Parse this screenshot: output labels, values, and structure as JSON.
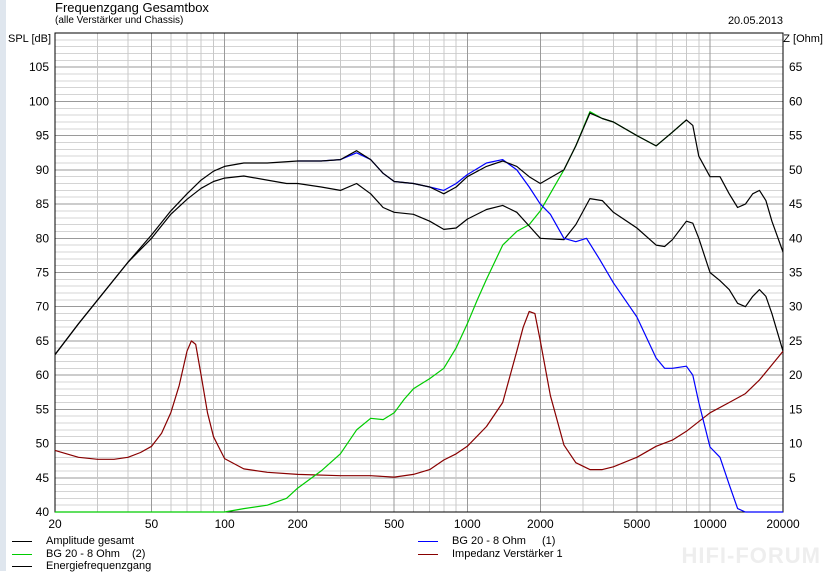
{
  "header": {
    "title": "Frequenzgang Gesamtbox",
    "subtitle": "(alle Verstärker und Chassis)",
    "date": "20.05.2013"
  },
  "axes": {
    "left_label": "SPL [dB]",
    "right_label": "Z [Ohm]"
  },
  "legend": [
    {
      "label": "Amplitude gesamt",
      "num": "",
      "color": "#000000"
    },
    {
      "label": "BG 20 - 8 Ohm",
      "num": "(1)",
      "color": "#0000ff"
    },
    {
      "label": "BG 20 - 8 Ohm",
      "num": "(2)",
      "color": "#00cc00"
    },
    {
      "label": "Impedanz Verstärker 1",
      "num": "",
      "color": "#880000"
    },
    {
      "label": "Energiefrequenzgang",
      "num": "",
      "color": "#000000"
    }
  ],
  "watermark": "HIFI-FORUM",
  "chart_data": {
    "type": "line",
    "title": "Frequenzgang Gesamtbox",
    "subtitle": "(alle Verstärker und Chassis)",
    "xlabel": "",
    "ylabel": "SPL [dB]",
    "y2label": "Z [Ohm]",
    "x_scale": "log",
    "xlim": [
      20,
      20000
    ],
    "ylim": [
      40,
      110
    ],
    "y2lim": [
      0,
      70
    ],
    "grid": true,
    "x_ticks": [
      20,
      50,
      100,
      200,
      500,
      1000,
      2000,
      5000,
      10000,
      20000
    ],
    "x_tick_labels": [
      "20",
      "50",
      "100",
      "200",
      "500",
      "1000",
      "2000",
      "5000",
      "10000",
      "20000"
    ],
    "y_ticks": [
      40,
      45,
      50,
      55,
      60,
      65,
      70,
      75,
      80,
      85,
      90,
      95,
      100,
      105
    ],
    "y_tick_labels": [
      "40",
      "45",
      "50",
      "55",
      "60",
      "65",
      "70",
      "75",
      "80",
      "85",
      "90",
      "95",
      "100",
      "105"
    ],
    "y2_ticks": [
      5,
      10,
      15,
      20,
      25,
      30,
      35,
      40,
      45,
      50,
      55,
      60,
      65
    ],
    "y2_tick_labels": [
      "5",
      "10",
      "15",
      "20",
      "25",
      "30",
      "35",
      "40",
      "45",
      "50",
      "55",
      "60",
      "65"
    ],
    "series": [
      {
        "name": "Amplitude gesamt",
        "color": "#000000",
        "axis": "left",
        "points": [
          [
            20,
            63
          ],
          [
            25,
            67.5
          ],
          [
            30,
            71
          ],
          [
            40,
            76.5
          ],
          [
            50,
            80.5
          ],
          [
            60,
            84
          ],
          [
            70,
            86.5
          ],
          [
            80,
            88.5
          ],
          [
            90,
            89.8
          ],
          [
            100,
            90.5
          ],
          [
            120,
            91
          ],
          [
            150,
            91
          ],
          [
            200,
            91.3
          ],
          [
            250,
            91.3
          ],
          [
            300,
            91.5
          ],
          [
            350,
            92.8
          ],
          [
            400,
            91.5
          ],
          [
            450,
            89.5
          ],
          [
            500,
            88.3
          ],
          [
            600,
            88
          ],
          [
            700,
            87.5
          ],
          [
            800,
            86.5
          ],
          [
            900,
            87.5
          ],
          [
            1000,
            89
          ],
          [
            1200,
            90.5
          ],
          [
            1400,
            91.3
          ],
          [
            1600,
            90.5
          ],
          [
            1800,
            89
          ],
          [
            2000,
            88
          ],
          [
            2500,
            90
          ],
          [
            2800,
            93.5
          ],
          [
            3200,
            98.3
          ],
          [
            3600,
            97.5
          ],
          [
            4000,
            97
          ],
          [
            5000,
            95
          ],
          [
            6000,
            93.5
          ],
          [
            7000,
            95.5
          ],
          [
            8000,
            97.3
          ],
          [
            8500,
            96.5
          ],
          [
            9000,
            92
          ],
          [
            10000,
            89
          ],
          [
            11000,
            89
          ],
          [
            12000,
            86.5
          ],
          [
            13000,
            84.5
          ],
          [
            14000,
            85
          ],
          [
            15000,
            86.5
          ],
          [
            16000,
            87
          ],
          [
            17000,
            85.5
          ],
          [
            18000,
            82.5
          ],
          [
            20000,
            78
          ]
        ]
      },
      {
        "name": "BG 20 - 8 Ohm (1)",
        "color": "#0000ff",
        "axis": "left",
        "points": [
          [
            200,
            91.3
          ],
          [
            250,
            91.3
          ],
          [
            300,
            91.5
          ],
          [
            350,
            92.5
          ],
          [
            400,
            91.5
          ],
          [
            450,
            89.5
          ],
          [
            500,
            88.3
          ],
          [
            600,
            88
          ],
          [
            700,
            87.5
          ],
          [
            800,
            87
          ],
          [
            900,
            88
          ],
          [
            1000,
            89.3
          ],
          [
            1200,
            91
          ],
          [
            1400,
            91.5
          ],
          [
            1600,
            90
          ],
          [
            1800,
            87.5
          ],
          [
            2000,
            85
          ],
          [
            2200,
            83.5
          ],
          [
            2500,
            80
          ],
          [
            2800,
            79.5
          ],
          [
            3100,
            80
          ],
          [
            3500,
            77
          ],
          [
            4000,
            73.5
          ],
          [
            5000,
            68.5
          ],
          [
            6000,
            62.5
          ],
          [
            6500,
            61
          ],
          [
            7000,
            61
          ],
          [
            8000,
            61.3
          ],
          [
            8500,
            60
          ],
          [
            9000,
            56
          ],
          [
            10000,
            49.5
          ],
          [
            11000,
            48
          ],
          [
            12000,
            44
          ],
          [
            13000,
            40.5
          ],
          [
            14000,
            40
          ],
          [
            20000,
            40
          ]
        ]
      },
      {
        "name": "BG 20 - 8 Ohm (2)",
        "color": "#00cc00",
        "axis": "left",
        "points": [
          [
            20,
            40
          ],
          [
            100,
            40
          ],
          [
            120,
            40.5
          ],
          [
            150,
            41
          ],
          [
            180,
            42
          ],
          [
            200,
            43.5
          ],
          [
            250,
            46
          ],
          [
            300,
            48.5
          ],
          [
            350,
            52
          ],
          [
            400,
            53.7
          ],
          [
            450,
            53.5
          ],
          [
            500,
            54.5
          ],
          [
            550,
            56.5
          ],
          [
            600,
            58
          ],
          [
            700,
            59.5
          ],
          [
            800,
            61
          ],
          [
            900,
            64
          ],
          [
            1000,
            67.5
          ],
          [
            1100,
            71
          ],
          [
            1200,
            74
          ],
          [
            1400,
            79
          ],
          [
            1600,
            81
          ],
          [
            1800,
            82
          ],
          [
            2000,
            84
          ],
          [
            2500,
            90
          ],
          [
            2800,
            93.5
          ],
          [
            3200,
            98.5
          ],
          [
            3600,
            97.5
          ],
          [
            4000,
            97
          ],
          [
            5000,
            95
          ],
          [
            6000,
            93.5
          ],
          [
            7000,
            95.5
          ],
          [
            8000,
            97.3
          ]
        ]
      },
      {
        "name": "Impedanz Verstärker 1",
        "color": "#880000",
        "axis": "right",
        "points": [
          [
            20,
            9
          ],
          [
            25,
            8
          ],
          [
            30,
            7.7
          ],
          [
            35,
            7.7
          ],
          [
            40,
            8
          ],
          [
            45,
            8.7
          ],
          [
            50,
            9.6
          ],
          [
            55,
            11.5
          ],
          [
            60,
            14.5
          ],
          [
            65,
            18.5
          ],
          [
            70,
            23.5
          ],
          [
            73,
            25
          ],
          [
            76,
            24.5
          ],
          [
            80,
            20
          ],
          [
            85,
            14.5
          ],
          [
            90,
            11
          ],
          [
            100,
            7.8
          ],
          [
            120,
            6.3
          ],
          [
            150,
            5.8
          ],
          [
            200,
            5.5
          ],
          [
            300,
            5.3
          ],
          [
            400,
            5.3
          ],
          [
            500,
            5.1
          ],
          [
            600,
            5.5
          ],
          [
            700,
            6.2
          ],
          [
            800,
            7.6
          ],
          [
            900,
            8.5
          ],
          [
            1000,
            9.6
          ],
          [
            1200,
            12.5
          ],
          [
            1400,
            16
          ],
          [
            1600,
            23.5
          ],
          [
            1700,
            27
          ],
          [
            1800,
            29.3
          ],
          [
            1900,
            29
          ],
          [
            2000,
            25
          ],
          [
            2200,
            17
          ],
          [
            2500,
            9.8
          ],
          [
            2800,
            7.2
          ],
          [
            3200,
            6.2
          ],
          [
            3600,
            6.2
          ],
          [
            4000,
            6.6
          ],
          [
            5000,
            8
          ],
          [
            6000,
            9.6
          ],
          [
            7000,
            10.5
          ],
          [
            8000,
            11.8
          ],
          [
            10000,
            14.5
          ],
          [
            12000,
            16
          ],
          [
            14000,
            17.3
          ],
          [
            16000,
            19.3
          ],
          [
            18000,
            21.5
          ],
          [
            20000,
            23.5
          ]
        ]
      },
      {
        "name": "Energiefrequenzgang",
        "color": "#000000",
        "axis": "left",
        "points": [
          [
            20,
            63
          ],
          [
            25,
            67.5
          ],
          [
            30,
            71
          ],
          [
            40,
            76.5
          ],
          [
            50,
            80
          ],
          [
            60,
            83.5
          ],
          [
            70,
            85.7
          ],
          [
            80,
            87.3
          ],
          [
            90,
            88.3
          ],
          [
            100,
            88.8
          ],
          [
            120,
            89.1
          ],
          [
            150,
            88.5
          ],
          [
            180,
            88
          ],
          [
            200,
            88
          ],
          [
            250,
            87.5
          ],
          [
            300,
            87
          ],
          [
            350,
            88
          ],
          [
            400,
            86.5
          ],
          [
            450,
            84.5
          ],
          [
            500,
            83.8
          ],
          [
            600,
            83.5
          ],
          [
            700,
            82.5
          ],
          [
            800,
            81.3
          ],
          [
            900,
            81.5
          ],
          [
            1000,
            82.8
          ],
          [
            1200,
            84.2
          ],
          [
            1400,
            84.8
          ],
          [
            1600,
            83.8
          ],
          [
            1800,
            81.8
          ],
          [
            2000,
            80
          ],
          [
            2500,
            79.8
          ],
          [
            2800,
            82
          ],
          [
            3200,
            85.8
          ],
          [
            3600,
            85.5
          ],
          [
            4000,
            83.8
          ],
          [
            5000,
            81.5
          ],
          [
            6000,
            79
          ],
          [
            6500,
            78.8
          ],
          [
            7000,
            79.8
          ],
          [
            8000,
            82.5
          ],
          [
            8500,
            82.2
          ],
          [
            9000,
            80
          ],
          [
            10000,
            75
          ],
          [
            11000,
            73.8
          ],
          [
            12000,
            72.5
          ],
          [
            13000,
            70.5
          ],
          [
            14000,
            70
          ],
          [
            15000,
            71.5
          ],
          [
            16000,
            72.5
          ],
          [
            17000,
            71.5
          ],
          [
            18000,
            69
          ],
          [
            20000,
            63.5
          ]
        ]
      }
    ]
  }
}
